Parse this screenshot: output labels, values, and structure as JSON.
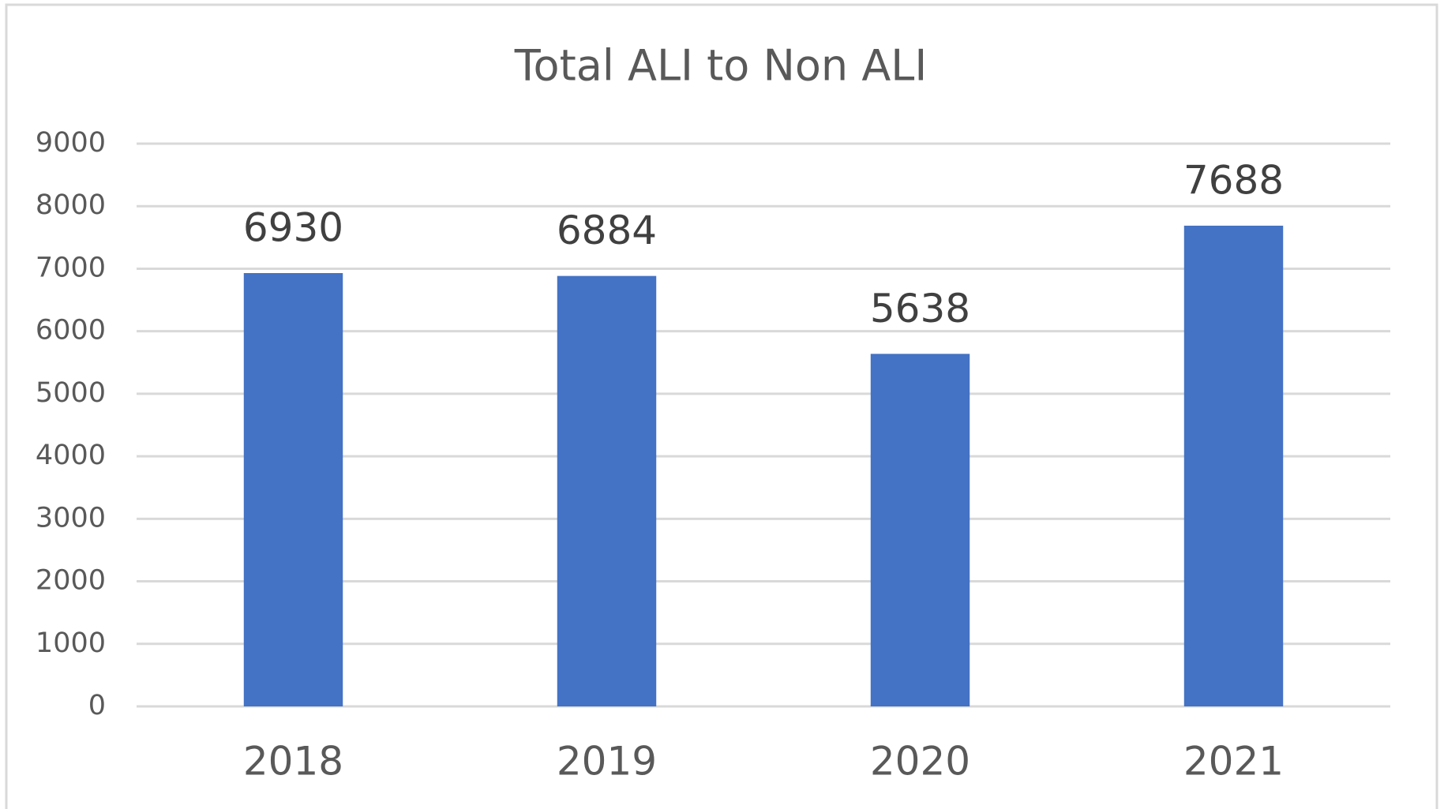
{
  "chart_data": {
    "type": "bar",
    "title": "Total ALI to Non ALI",
    "categories": [
      "2018",
      "2019",
      "2020",
      "2021"
    ],
    "values": [
      6930,
      6884,
      5638,
      7688
    ],
    "color": "#4472c4",
    "ylim": [
      0,
      9000
    ],
    "yticks": [
      0,
      1000,
      2000,
      3000,
      4000,
      5000,
      6000,
      7000,
      8000,
      9000
    ],
    "grid": true
  }
}
